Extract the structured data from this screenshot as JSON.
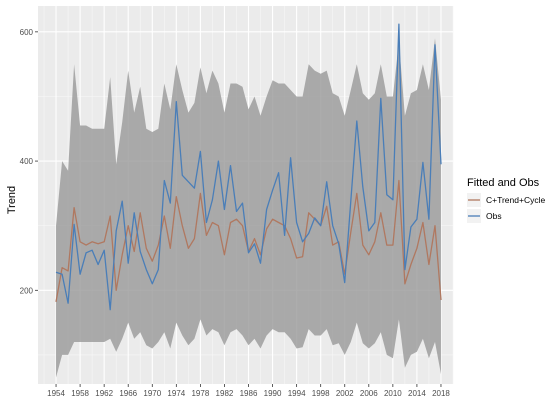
{
  "chart_data": {
    "type": "line",
    "xlabel": "",
    "ylabel": "Trend",
    "xlim": [
      1951,
      2020
    ],
    "ylim": [
      55,
      640
    ],
    "x_ticks": [
      "1954",
      "1958",
      "1962",
      "1966",
      "1970",
      "1974",
      "1978",
      "1982",
      "1986",
      "1990",
      "1994",
      "1998",
      "2002",
      "2006",
      "2010",
      "2014",
      "2018"
    ],
    "y_ticks": [
      200,
      400,
      600
    ],
    "grid": true,
    "background_color": "#ebebeb",
    "band_color": "#999999",
    "legend": {
      "title": "Fitted and Obs",
      "placement": "right",
      "entries": [
        "C+Trend+Cycle",
        "Obs"
      ]
    },
    "x": [
      1954,
      1955,
      1956,
      1957,
      1958,
      1959,
      1960,
      1961,
      1962,
      1963,
      1964,
      1965,
      1966,
      1967,
      1968,
      1969,
      1970,
      1971,
      1972,
      1973,
      1974,
      1975,
      1976,
      1977,
      1978,
      1979,
      1980,
      1981,
      1982,
      1983,
      1984,
      1985,
      1986,
      1987,
      1988,
      1989,
      1990,
      1991,
      1992,
      1993,
      1994,
      1995,
      1996,
      1997,
      1998,
      1999,
      2000,
      2001,
      2002,
      2003,
      2004,
      2005,
      2006,
      2007,
      2008,
      2009,
      2010,
      2011,
      2012,
      2013,
      2014,
      2015,
      2016,
      2017,
      2018
    ],
    "series": [
      {
        "name": "C+Trend+Cycle",
        "color": "#b07860",
        "values": [
          182,
          235,
          230,
          328,
          275,
          270,
          275,
          272,
          275,
          315,
          200,
          255,
          300,
          260,
          320,
          265,
          245,
          270,
          315,
          265,
          345,
          300,
          265,
          280,
          350,
          285,
          305,
          300,
          255,
          305,
          310,
          300,
          260,
          280,
          255,
          295,
          310,
          305,
          300,
          280,
          250,
          252,
          320,
          310,
          300,
          330,
          270,
          275,
          225,
          290,
          350,
          270,
          255,
          275,
          320,
          270,
          270,
          370,
          210,
          240,
          265,
          305,
          240,
          300,
          185
        ]
      },
      {
        "name": "Obs",
        "color": "#4a7eb8",
        "values": [
          228,
          225,
          180,
          302,
          225,
          258,
          262,
          240,
          262,
          170,
          292,
          338,
          242,
          320,
          260,
          232,
          210,
          232,
          370,
          335,
          492,
          378,
          368,
          358,
          415,
          305,
          340,
          400,
          325,
          393,
          322,
          335,
          258,
          272,
          242,
          325,
          355,
          382,
          285,
          405,
          305,
          275,
          288,
          312,
          300,
          368,
          300,
          272,
          212,
          338,
          462,
          360,
          292,
          305,
          497,
          348,
          340,
          612,
          232,
          298,
          310,
          398,
          310,
          580,
          395
        ]
      }
    ],
    "band": {
      "upper": [
        300,
        400,
        385,
        550,
        455,
        455,
        450,
        450,
        450,
        530,
        395,
        460,
        540,
        475,
        515,
        450,
        445,
        450,
        520,
        480,
        550,
        510,
        475,
        490,
        545,
        505,
        540,
        520,
        475,
        520,
        520,
        515,
        480,
        500,
        470,
        500,
        525,
        520,
        520,
        510,
        500,
        500,
        550,
        540,
        535,
        540,
        505,
        500,
        470,
        510,
        550,
        505,
        495,
        505,
        550,
        500,
        500,
        585,
        470,
        505,
        510,
        550,
        510,
        590,
        495
      ],
      "lower": [
        65,
        100,
        100,
        120,
        120,
        120,
        120,
        120,
        120,
        125,
        105,
        125,
        150,
        125,
        135,
        115,
        110,
        120,
        135,
        110,
        150,
        130,
        115,
        125,
        155,
        130,
        140,
        135,
        115,
        135,
        140,
        130,
        115,
        125,
        110,
        130,
        140,
        135,
        135,
        125,
        110,
        112,
        140,
        130,
        130,
        140,
        115,
        118,
        100,
        120,
        150,
        118,
        110,
        118,
        135,
        100,
        95,
        155,
        80,
        100,
        105,
        125,
        95,
        120,
        70
      ]
    }
  }
}
